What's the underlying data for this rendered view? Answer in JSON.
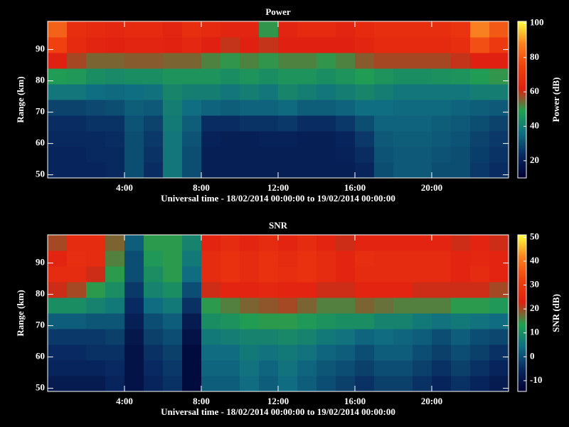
{
  "chart_data": [
    {
      "type": "heatmap",
      "title": "Power",
      "xlabel": "Universal time - 18/02/2014 00:00:00 to 19/02/2014 00:00:00",
      "ylabel": "Range (km)",
      "zlabel": "Power (dB)",
      "x": [
        0.5,
        1.5,
        2.5,
        3.5,
        4.5,
        5.5,
        6.5,
        7.5,
        8.5,
        9.5,
        10.5,
        11.5,
        12.5,
        13.5,
        14.5,
        15.5,
        16.5,
        17.5,
        18.5,
        19.5,
        20.5,
        21.5,
        22.5,
        23.5
      ],
      "y": [
        51.5,
        56.5,
        61.5,
        66.5,
        71.5,
        76.5,
        81.5,
        86.5,
        91.5,
        96.5
      ],
      "values": [
        [
          22,
          22,
          22,
          23,
          30,
          24,
          38,
          30,
          20,
          20,
          20,
          20,
          20,
          20,
          20,
          20,
          22,
          30,
          32,
          32,
          30,
          30,
          26,
          24
        ],
        [
          22,
          22,
          23,
          23,
          30,
          25,
          38,
          30,
          20,
          20,
          20,
          20,
          20,
          20,
          20,
          21,
          24,
          31,
          32,
          32,
          31,
          30,
          27,
          25
        ],
        [
          23,
          23,
          23,
          24,
          30,
          26,
          38,
          31,
          21,
          20,
          20,
          21,
          21,
          20,
          20,
          22,
          26,
          32,
          33,
          33,
          32,
          31,
          28,
          26
        ],
        [
          24,
          24,
          25,
          25,
          31,
          28,
          39,
          33,
          24,
          24,
          25,
          25,
          26,
          24,
          24,
          26,
          30,
          34,
          34,
          34,
          33,
          32,
          30,
          28
        ],
        [
          28,
          28,
          29,
          30,
          33,
          32,
          40,
          36,
          34,
          33,
          34,
          34,
          35,
          33,
          33,
          34,
          36,
          36,
          35,
          35,
          35,
          34,
          33,
          32
        ],
        [
          38,
          38,
          36,
          35,
          36,
          37,
          42,
          40,
          40,
          38,
          40,
          38,
          42,
          40,
          38,
          40,
          42,
          40,
          38,
          38,
          38,
          38,
          40,
          40
        ],
        [
          48,
          47,
          44,
          43,
          44,
          44,
          46,
          46,
          46,
          44,
          46,
          44,
          46,
          46,
          44,
          46,
          48,
          46,
          44,
          44,
          45,
          46,
          48,
          50
        ],
        [
          62,
          58,
          55,
          55,
          56,
          56,
          55,
          55,
          52,
          50,
          52,
          50,
          52,
          52,
          50,
          52,
          56,
          58,
          58,
          58,
          58,
          60,
          62,
          62
        ],
        [
          75,
          66,
          64,
          63,
          64,
          64,
          63,
          65,
          62,
          60,
          62,
          60,
          62,
          62,
          62,
          62,
          64,
          66,
          66,
          66,
          66,
          68,
          78,
          72
        ],
        [
          82,
          68,
          66,
          65,
          66,
          66,
          64,
          68,
          66,
          64,
          64,
          50,
          64,
          66,
          66,
          64,
          66,
          68,
          68,
          68,
          68,
          70,
          88,
          80
        ]
      ],
      "xlim": [
        0,
        24
      ],
      "xticks": [
        {
          "value": 4,
          "label": "4:00"
        },
        {
          "value": 8,
          "label": "8:00"
        },
        {
          "value": 12,
          "label": "12:00"
        },
        {
          "value": 16,
          "label": "16:00"
        },
        {
          "value": 20,
          "label": "20:00"
        }
      ],
      "ylim": [
        49,
        99
      ],
      "yticks": [
        50,
        60,
        70,
        80,
        90
      ],
      "zlim": [
        10,
        101
      ],
      "zticks": [
        20,
        40,
        60,
        80,
        100
      ],
      "colors": [
        "#000030",
        "#082860",
        "#106e82",
        "#22a050",
        "#e02010",
        "#f04010",
        "#f88020",
        "#ffff40"
      ]
    },
    {
      "type": "heatmap",
      "title": "SNR",
      "xlabel": "Universal time - 18/02/2014 00:00:00 to 19/02/2014 00:00:00",
      "ylabel": "Range (km)",
      "zlabel": "SNR (dB)",
      "x": [
        0.5,
        1.5,
        2.5,
        3.5,
        4.5,
        5.5,
        6.5,
        7.5,
        8.5,
        9.5,
        10.5,
        11.5,
        12.5,
        13.5,
        14.5,
        15.5,
        16.5,
        17.5,
        18.5,
        19.5,
        20.5,
        21.5,
        22.5,
        23.5
      ],
      "y": [
        51.5,
        56.5,
        61.5,
        66.5,
        71.5,
        76.5,
        81.5,
        86.5,
        91.5,
        96.5
      ],
      "values": [
        [
          -8,
          -8,
          -8,
          -6,
          -10,
          -6,
          -4,
          -12,
          2,
          2,
          4,
          2,
          4,
          2,
          0,
          -2,
          -4,
          -2,
          -2,
          -4,
          -6,
          -4,
          -6,
          -8
        ],
        [
          -6,
          -6,
          -6,
          -5,
          -10,
          -5,
          -3,
          -12,
          3,
          3,
          5,
          3,
          5,
          3,
          1,
          0,
          -2,
          0,
          0,
          -2,
          -4,
          -2,
          -4,
          -6
        ],
        [
          -5,
          -5,
          -4,
          -4,
          -10,
          -4,
          -2,
          -12,
          4,
          4,
          6,
          5,
          6,
          5,
          3,
          2,
          0,
          2,
          2,
          0,
          -2,
          0,
          -2,
          -4
        ],
        [
          -3,
          -3,
          -3,
          -2,
          -9,
          -2,
          0,
          -10,
          6,
          7,
          8,
          8,
          9,
          8,
          6,
          5,
          3,
          4,
          3,
          2,
          0,
          2,
          0,
          -1
        ],
        [
          2,
          2,
          1,
          1,
          -7,
          0,
          2,
          -8,
          10,
          11,
          13,
          14,
          14,
          12,
          11,
          10,
          10,
          8,
          8,
          6,
          5,
          6,
          5,
          4
        ],
        [
          10,
          10,
          8,
          6,
          -5,
          4,
          6,
          -4,
          14,
          16,
          18,
          19,
          20,
          18,
          16,
          16,
          18,
          17,
          16,
          16,
          16,
          14,
          14,
          12
        ],
        [
          22,
          20,
          14,
          10,
          -3,
          8,
          10,
          0,
          22,
          24,
          24,
          25,
          24,
          24,
          22,
          22,
          24,
          24,
          24,
          22,
          22,
          22,
          22,
          20
        ],
        [
          26,
          26,
          22,
          14,
          0,
          10,
          14,
          4,
          26,
          28,
          26,
          28,
          27,
          28,
          26,
          24,
          26,
          26,
          26,
          26,
          26,
          24,
          26,
          24
        ],
        [
          24,
          27,
          26,
          16,
          0,
          12,
          14,
          6,
          26,
          28,
          26,
          28,
          26,
          28,
          26,
          24,
          27,
          26,
          26,
          26,
          26,
          24,
          25,
          24
        ],
        [
          20,
          26,
          26,
          18,
          2,
          14,
          14,
          8,
          24,
          26,
          24,
          26,
          24,
          26,
          24,
          22,
          24,
          24,
          24,
          24,
          24,
          22,
          24,
          22
        ]
      ],
      "xlim": [
        0,
        24
      ],
      "xticks": [
        {
          "value": 4,
          "label": "4:00"
        },
        {
          "value": 8,
          "label": "8:00"
        },
        {
          "value": 12,
          "label": "12:00"
        },
        {
          "value": 16,
          "label": "16:00"
        },
        {
          "value": 20,
          "label": "20:00"
        }
      ],
      "ylim": [
        49,
        99
      ],
      "yticks": [
        50,
        60,
        70,
        80,
        90
      ],
      "zlim": [
        -14.5,
        51
      ],
      "zticks": [
        -10,
        0,
        10,
        20,
        30,
        40,
        50
      ],
      "colors": [
        "#000030",
        "#082860",
        "#106e82",
        "#22a050",
        "#e02010",
        "#f04010",
        "#f88020",
        "#ffff40"
      ]
    }
  ]
}
